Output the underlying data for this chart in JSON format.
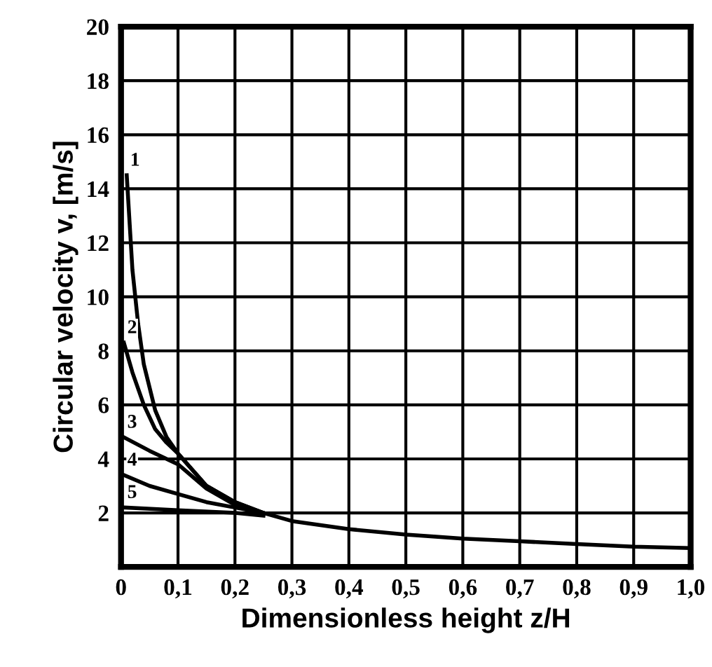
{
  "chart_data": {
    "type": "line",
    "xlabel": "Dimensionless height z/H",
    "ylabel": "Circular velocity v, [m/s]",
    "xlim": [
      0,
      1.0
    ],
    "ylim": [
      0,
      20
    ],
    "xticks": [
      0,
      {
        "value": 0.1,
        "label": "0,1"
      },
      {
        "value": 0.2,
        "label": "0,2"
      },
      {
        "value": 0.3,
        "label": "0,3"
      },
      {
        "value": 0.4,
        "label": "0,4"
      },
      {
        "value": 0.5,
        "label": "0,5"
      },
      {
        "value": 0.6,
        "label": "0,6"
      },
      {
        "value": 0.7,
        "label": "0,7"
      },
      {
        "value": 0.8,
        "label": "0,8"
      },
      {
        "value": 0.9,
        "label": "0,9"
      },
      {
        "value": 1.0,
        "label": "1,0"
      }
    ],
    "yticks": [
      2,
      4,
      6,
      8,
      10,
      12,
      14,
      16,
      18,
      20
    ],
    "grid": true,
    "legend": false,
    "marker": "none",
    "line_style": "solid",
    "series": [
      {
        "name": "1",
        "color": "#000000",
        "x": [
          0.01,
          0.02,
          0.03,
          0.04,
          0.06,
          0.08,
          0.1,
          0.15,
          0.2,
          0.25,
          0.3,
          0.4,
          0.5,
          0.6,
          0.7,
          0.8,
          0.9,
          1.0
        ],
        "values": [
          14.5,
          11,
          9,
          7.5,
          5.8,
          4.8,
          4.2,
          3.0,
          2.4,
          2.0,
          1.7,
          1.4,
          1.2,
          1.05,
          0.95,
          0.85,
          0.75,
          0.7
        ]
      },
      {
        "name": "2",
        "color": "#000000",
        "x": [
          0.005,
          0.02,
          0.04,
          0.06,
          0.08,
          0.1,
          0.15,
          0.2,
          0.25
        ],
        "values": [
          8.3,
          7.2,
          6.0,
          5.1,
          4.6,
          4.2,
          3.0,
          2.4,
          2.0
        ]
      },
      {
        "name": "3",
        "color": "#000000",
        "x": [
          0.005,
          0.05,
          0.1,
          0.15,
          0.2,
          0.25
        ],
        "values": [
          4.8,
          4.3,
          3.8,
          2.9,
          2.3,
          2.0
        ]
      },
      {
        "name": "4",
        "color": "#000000",
        "x": [
          0.005,
          0.05,
          0.1,
          0.15,
          0.2,
          0.25
        ],
        "values": [
          3.4,
          3.0,
          2.7,
          2.4,
          2.2,
          2.0
        ]
      },
      {
        "name": "5",
        "color": "#000000",
        "x": [
          0.005,
          0.1,
          0.2,
          0.25
        ],
        "values": [
          2.2,
          2.1,
          2.0,
          1.9
        ]
      }
    ]
  }
}
